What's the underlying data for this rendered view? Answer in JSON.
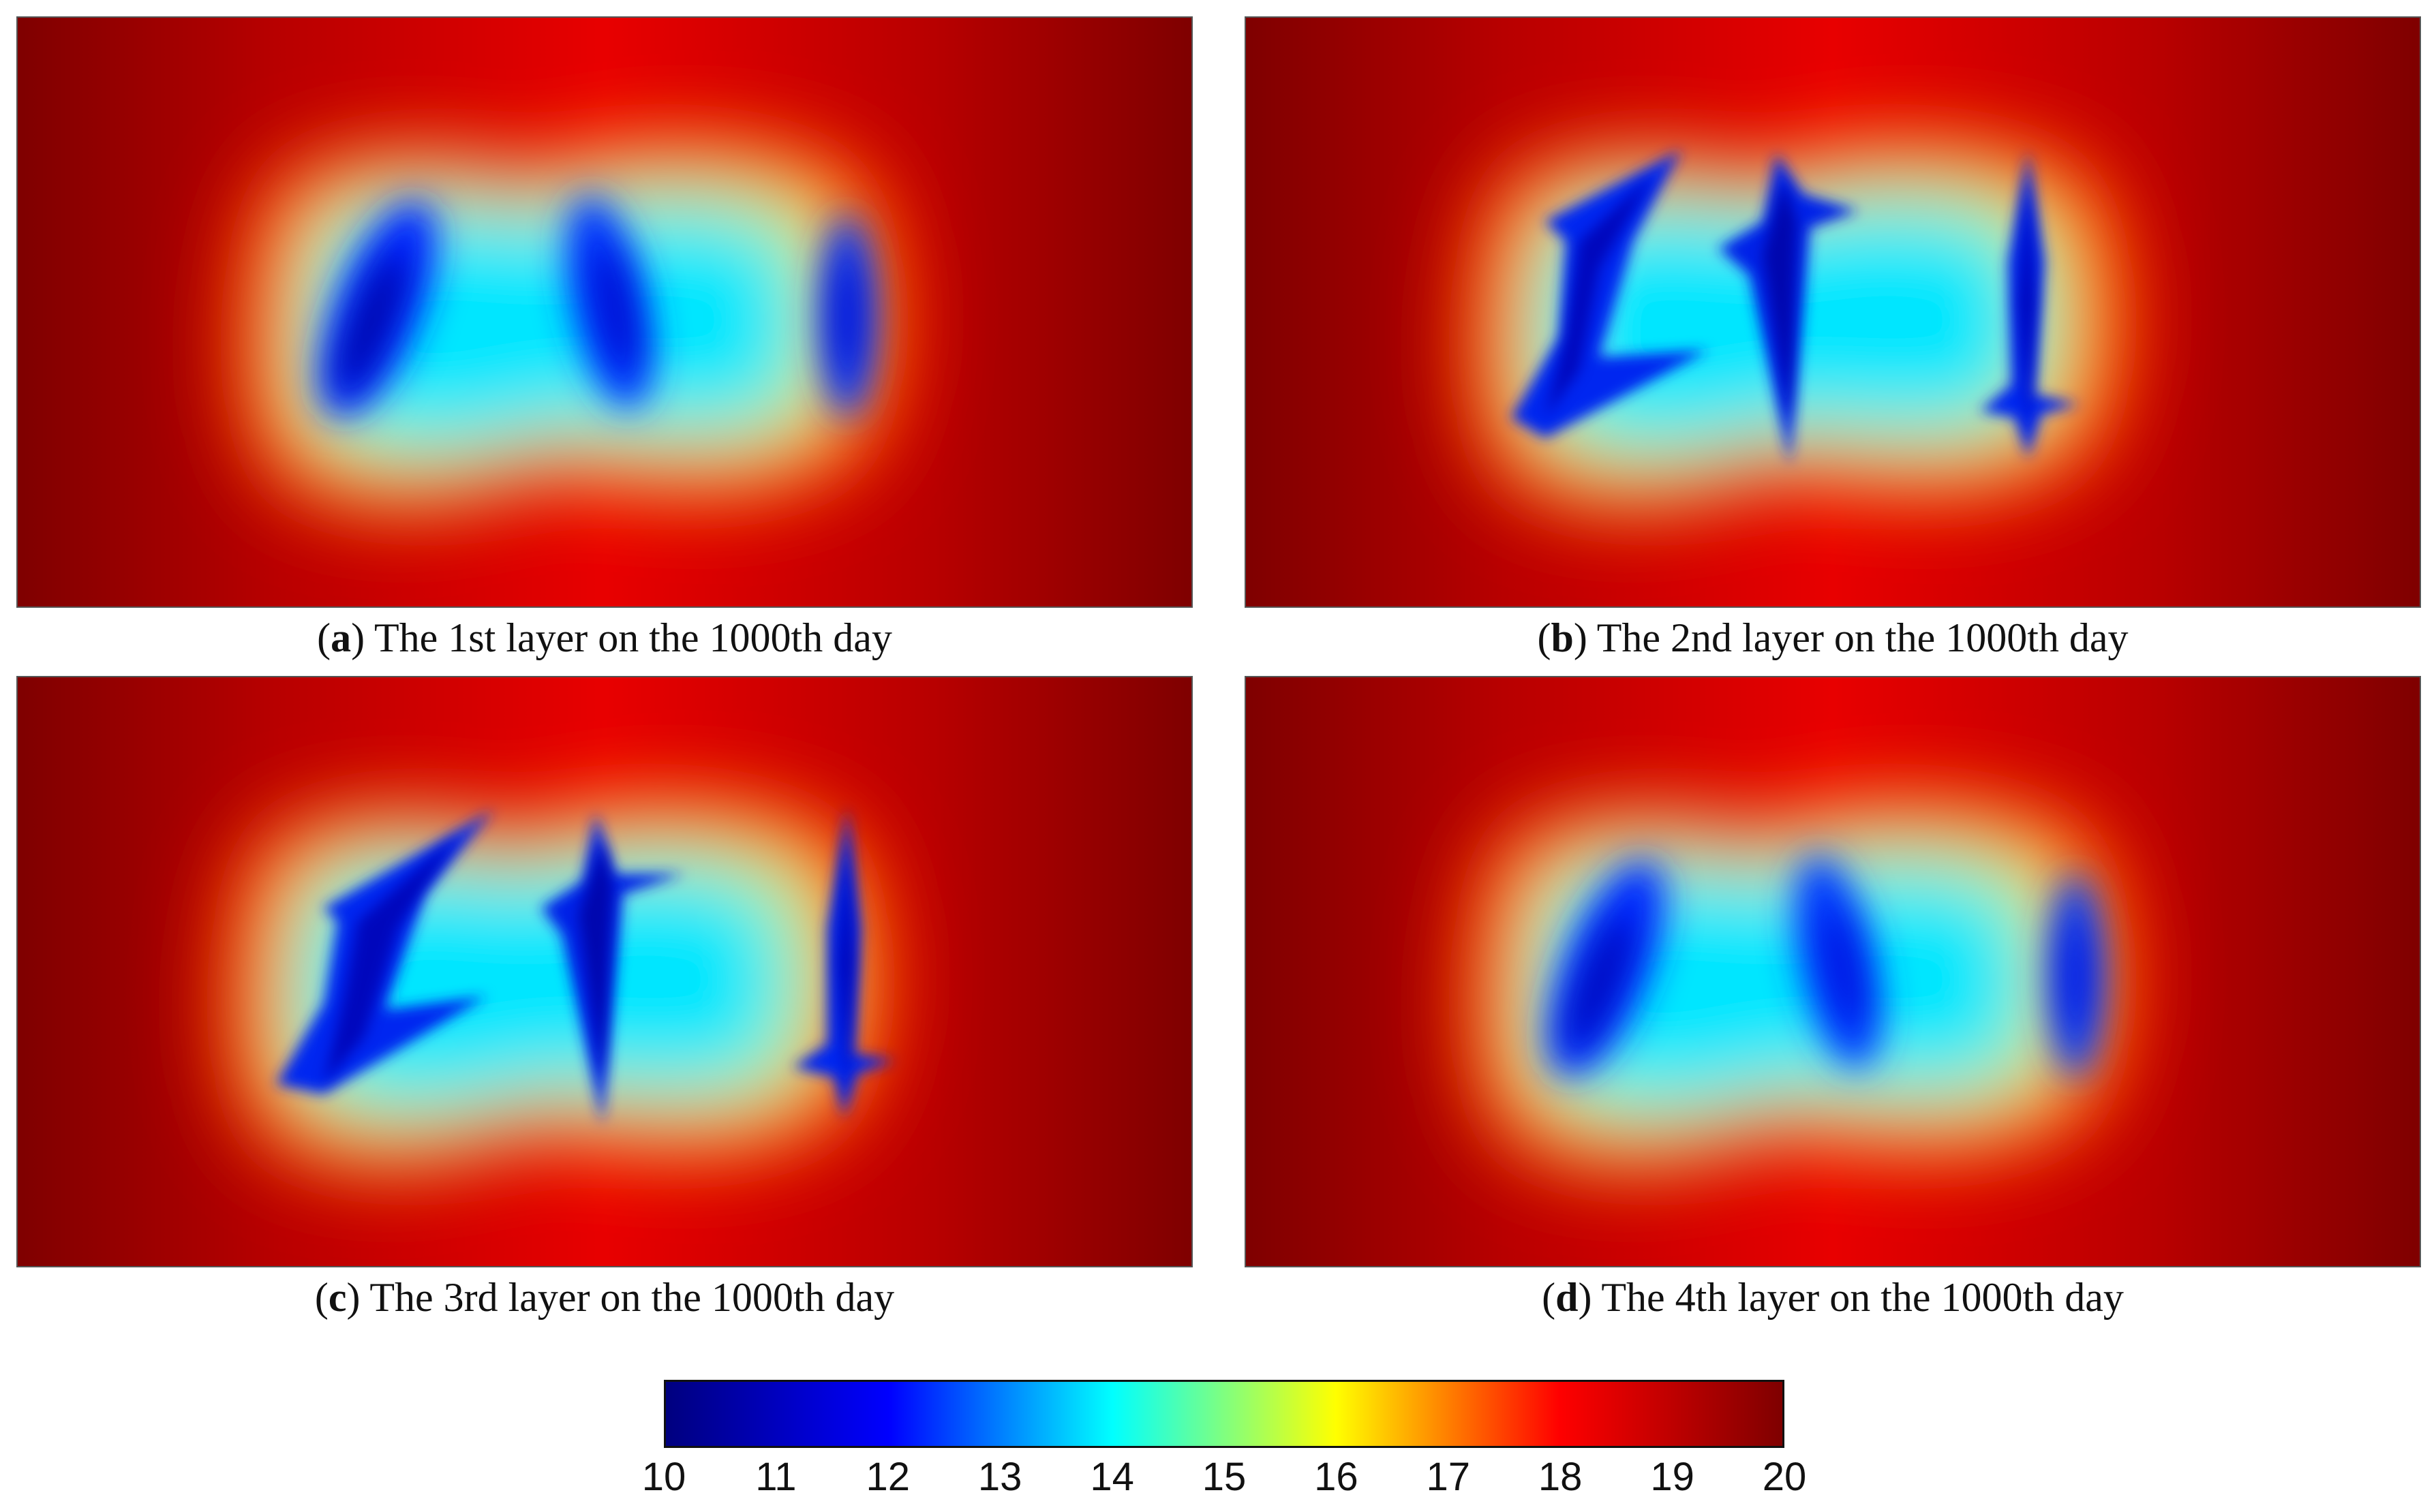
{
  "chart_data": [
    {
      "type": "heatmap",
      "panel_label": "a",
      "caption_rest": " The 1st layer on the 1000th day",
      "lows": [
        {
          "kind": "blob",
          "value": 10.3,
          "angle": 22
        },
        {
          "kind": "blob",
          "value": 10.8,
          "angle": -12
        },
        {
          "kind": "blob",
          "value": 10.8,
          "angle": 0
        }
      ]
    },
    {
      "type": "heatmap",
      "panel_label": "b",
      "caption_rest": " The 2nd layer on the 1000th day",
      "lows": [
        {
          "kind": "star",
          "value": 10.6
        },
        {
          "kind": "star",
          "value": 10.4
        },
        {
          "kind": "star",
          "value": 10.6
        }
      ]
    },
    {
      "type": "heatmap",
      "panel_label": "c",
      "caption_rest": " The 3rd layer on the 1000th day",
      "lows": [
        {
          "kind": "star",
          "value": 10.6
        },
        {
          "kind": "star",
          "value": 10.4
        },
        {
          "kind": "star",
          "value": 10.6
        }
      ]
    },
    {
      "type": "heatmap",
      "panel_label": "d",
      "caption_rest": " The 4th layer on the 1000th day",
      "lows": [
        {
          "kind": "blob",
          "value": 10.4,
          "angle": 22
        },
        {
          "kind": "blob",
          "value": 10.9,
          "angle": -12
        },
        {
          "kind": "blob",
          "value": 10.9,
          "angle": 0
        }
      ]
    }
  ],
  "colorbar": {
    "min": 10,
    "max": 20,
    "colormap": "jet",
    "ticks": [
      "10",
      "11",
      "12",
      "13",
      "14",
      "15",
      "16",
      "17",
      "18",
      "19",
      "20"
    ]
  },
  "colors": {
    "jet": [
      "#00007f",
      "#0000ff",
      "#00ffff",
      "#ffff00",
      "#ff0000",
      "#7f0000"
    ],
    "background": "#ffffff"
  }
}
